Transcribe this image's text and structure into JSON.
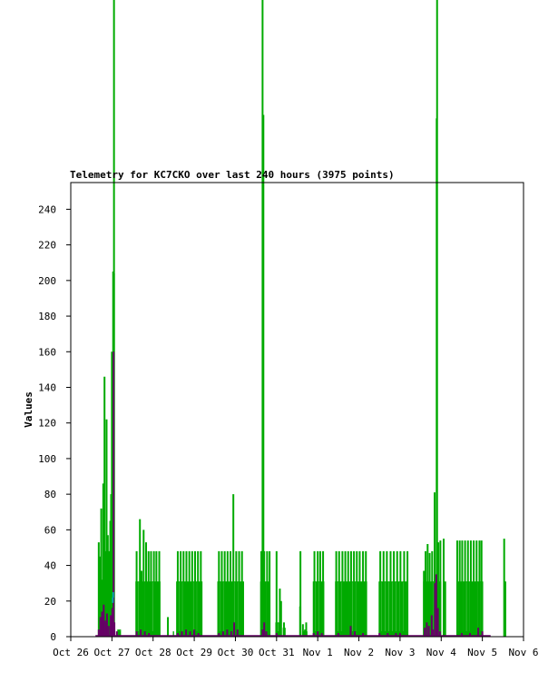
{
  "chart_data": {
    "type": "bar",
    "title": "Telemetry for KC7CKO over last 240 hours (3975 points)",
    "xlabel": "",
    "ylabel": "Values",
    "xlim": [
      0,
      11
    ],
    "ylim": [
      0,
      255
    ],
    "yticks": [
      0,
      20,
      40,
      60,
      80,
      100,
      120,
      140,
      160,
      180,
      200,
      220,
      240
    ],
    "xticks": [
      {
        "x": 0,
        "label": "Oct 26"
      },
      {
        "x": 1,
        "label": "Oct 27"
      },
      {
        "x": 2,
        "label": "Oct 28"
      },
      {
        "x": 3,
        "label": "Oct 29"
      },
      {
        "x": 4,
        "label": "Oct 30"
      },
      {
        "x": 5,
        "label": "Oct 31"
      },
      {
        "x": 6,
        "label": "Nov 1"
      },
      {
        "x": 7,
        "label": "Nov 2"
      },
      {
        "x": 8,
        "label": "Nov 3"
      },
      {
        "x": 9,
        "label": "Nov 4"
      },
      {
        "x": 10,
        "label": "Nov 5"
      },
      {
        "x": 11,
        "label": "Nov 6"
      }
    ],
    "colors": {
      "primary": "#00aa00",
      "secondary": "#660066",
      "tertiary": "#00aaaa",
      "frame": "#000000"
    },
    "series": [
      {
        "color": "#00aa00",
        "segments": [
          {
            "x0": 0.67,
            "x1": 1.05,
            "base": 32,
            "spikes": [
              [
                0.68,
                53
              ],
              [
                0.71,
                45
              ],
              [
                0.74,
                72
              ],
              [
                0.77,
                30
              ],
              [
                0.79,
                86
              ],
              [
                0.82,
                146
              ],
              [
                0.84,
                48
              ],
              [
                0.87,
                122
              ],
              [
                0.9,
                57
              ],
              [
                0.93,
                48
              ],
              [
                0.96,
                65
              ],
              [
                0.98,
                80
              ],
              [
                1.0,
                160
              ],
              [
                1.03,
                205
              ],
              [
                1.05,
                204
              ]
            ]
          },
          {
            "x0": 1.13,
            "x1": 1.22,
            "base": 4,
            "spikes": []
          },
          {
            "x0": 1.57,
            "x1": 2.18,
            "base": 31,
            "spikes": [
              [
                1.6,
                48
              ],
              [
                1.68,
                66
              ],
              [
                1.72,
                37
              ],
              [
                1.77,
                60
              ],
              [
                1.83,
                53
              ],
              [
                1.89,
                48
              ],
              [
                1.95,
                48
              ],
              [
                2.02,
                48
              ],
              [
                2.08,
                48
              ],
              [
                2.15,
                48
              ]
            ]
          },
          {
            "x0": 2.35,
            "x1": 2.38,
            "base": 5,
            "spikes": [
              [
                2.36,
                11
              ]
            ]
          },
          {
            "x0": 2.48,
            "x1": 2.51,
            "base": 3,
            "spikes": []
          },
          {
            "x0": 2.56,
            "x1": 3.2,
            "base": 31,
            "spikes": [
              [
                2.6,
                48
              ],
              [
                2.67,
                48
              ],
              [
                2.74,
                48
              ],
              [
                2.81,
                48
              ],
              [
                2.88,
                48
              ],
              [
                2.95,
                48
              ],
              [
                3.02,
                48
              ],
              [
                3.09,
                48
              ],
              [
                3.16,
                48
              ]
            ]
          },
          {
            "x0": 3.56,
            "x1": 4.21,
            "base": 31,
            "spikes": [
              [
                3.6,
                48
              ],
              [
                3.67,
                48
              ],
              [
                3.74,
                48
              ],
              [
                3.81,
                48
              ],
              [
                3.88,
                48
              ],
              [
                3.95,
                80
              ],
              [
                4.02,
                48
              ],
              [
                4.09,
                48
              ],
              [
                4.16,
                48
              ]
            ]
          },
          {
            "x0": 4.6,
            "x1": 4.84,
            "base": 31,
            "spikes": [
              [
                4.63,
                48
              ],
              [
                4.7,
                48
              ],
              [
                4.77,
                48
              ],
              [
                4.83,
                48
              ]
            ]
          },
          {
            "x0": 4.97,
            "x1": 5.12,
            "base": 8,
            "spikes": [
              [
                5.0,
                48
              ],
              [
                5.08,
                27
              ],
              [
                5.11,
                20
              ]
            ]
          },
          {
            "x0": 5.15,
            "x1": 5.22,
            "base": 5,
            "spikes": [
              [
                5.18,
                8
              ]
            ]
          },
          {
            "x0": 5.55,
            "x1": 5.6,
            "base": 17,
            "spikes": [
              [
                5.58,
                48
              ]
            ]
          },
          {
            "x0": 5.62,
            "x1": 5.75,
            "base": 3,
            "spikes": [
              [
                5.64,
                7
              ],
              [
                5.69,
                4
              ],
              [
                5.72,
                8
              ]
            ]
          },
          {
            "x0": 5.88,
            "x1": 6.16,
            "base": 31,
            "spikes": [
              [
                5.92,
                48
              ],
              [
                6.0,
                48
              ],
              [
                6.06,
                48
              ],
              [
                6.13,
                48
              ]
            ]
          },
          {
            "x0": 6.42,
            "x1": 7.2,
            "base": 31,
            "spikes": [
              [
                6.45,
                48
              ],
              [
                6.52,
                48
              ],
              [
                6.6,
                48
              ],
              [
                6.67,
                48
              ],
              [
                6.74,
                48
              ],
              [
                6.81,
                48
              ],
              [
                6.88,
                48
              ],
              [
                6.95,
                48
              ],
              [
                7.02,
                48
              ],
              [
                7.1,
                48
              ],
              [
                7.17,
                48
              ]
            ]
          },
          {
            "x0": 7.48,
            "x1": 8.2,
            "base": 31,
            "spikes": [
              [
                7.52,
                48
              ],
              [
                7.6,
                48
              ],
              [
                7.68,
                48
              ],
              [
                7.77,
                48
              ],
              [
                7.85,
                48
              ],
              [
                7.93,
                48
              ],
              [
                8.01,
                48
              ],
              [
                8.1,
                48
              ],
              [
                8.18,
                48
              ]
            ]
          },
          {
            "x0": 8.56,
            "x1": 9.0,
            "base": 31,
            "spikes": [
              [
                8.58,
                37
              ],
              [
                8.62,
                48
              ],
              [
                8.67,
                52
              ],
              [
                8.72,
                47
              ],
              [
                8.78,
                48
              ],
              [
                8.84,
                81
              ],
              [
                8.93,
                53
              ],
              [
                8.98,
                54
              ]
            ]
          },
          {
            "x0": 9.04,
            "x1": 9.12,
            "base": 31,
            "spikes": [
              [
                9.06,
                55
              ]
            ]
          },
          {
            "x0": 9.37,
            "x1": 10.02,
            "base": 31,
            "spikes": [
              [
                9.39,
                54
              ],
              [
                9.45,
                54
              ],
              [
                9.51,
                54
              ],
              [
                9.58,
                54
              ],
              [
                9.65,
                54
              ],
              [
                9.72,
                54
              ],
              [
                9.79,
                54
              ],
              [
                9.86,
                54
              ],
              [
                9.93,
                54
              ],
              [
                9.98,
                54
              ]
            ]
          },
          {
            "x0": 10.52,
            "x1": 10.58,
            "base": 31,
            "spikes": [
              [
                10.53,
                55
              ]
            ]
          }
        ],
        "tall": [
          {
            "x": 1.05,
            "y": 420
          },
          {
            "x": 4.66,
            "y": 410
          },
          {
            "x": 4.68,
            "y": 293
          },
          {
            "x": 8.9,
            "y": 410
          },
          {
            "x": 8.89,
            "y": 291
          }
        ]
      },
      {
        "color": "#660066",
        "points": [
          [
            0.68,
            4
          ],
          [
            0.72,
            11
          ],
          [
            0.76,
            14
          ],
          [
            0.8,
            18
          ],
          [
            0.84,
            9
          ],
          [
            0.88,
            13
          ],
          [
            0.92,
            6
          ],
          [
            0.97,
            12
          ],
          [
            1.01,
            16
          ],
          [
            1.04,
            160
          ],
          [
            1.06,
            8
          ],
          [
            1.12,
            3
          ],
          [
            1.6,
            3
          ],
          [
            1.7,
            4
          ],
          [
            1.8,
            3
          ],
          [
            1.9,
            2
          ],
          [
            2.6,
            2
          ],
          [
            2.7,
            3
          ],
          [
            2.8,
            4
          ],
          [
            2.9,
            3
          ],
          [
            3.0,
            4
          ],
          [
            3.1,
            2
          ],
          [
            3.6,
            2
          ],
          [
            3.7,
            3
          ],
          [
            3.8,
            4
          ],
          [
            3.9,
            3
          ],
          [
            3.97,
            8
          ],
          [
            4.05,
            4
          ],
          [
            4.66,
            4
          ],
          [
            4.7,
            8
          ],
          [
            4.75,
            3
          ],
          [
            5.0,
            2
          ],
          [
            5.9,
            2
          ],
          [
            6.0,
            3
          ],
          [
            6.1,
            2
          ],
          [
            6.5,
            2
          ],
          [
            6.8,
            6
          ],
          [
            6.9,
            3
          ],
          [
            7.1,
            2
          ],
          [
            7.5,
            2
          ],
          [
            7.7,
            2
          ],
          [
            7.9,
            2
          ],
          [
            8.0,
            2
          ],
          [
            8.6,
            5
          ],
          [
            8.65,
            8
          ],
          [
            8.7,
            6
          ],
          [
            8.77,
            12
          ],
          [
            8.8,
            4
          ],
          [
            8.85,
            30
          ],
          [
            8.88,
            35
          ],
          [
            8.92,
            16
          ],
          [
            8.97,
            3
          ],
          [
            9.5,
            2
          ],
          [
            9.7,
            2
          ],
          [
            9.9,
            5
          ],
          [
            10.0,
            3
          ]
        ]
      },
      {
        "color": "#00aaaa",
        "points": [
          [
            1.02,
            22
          ],
          [
            1.03,
            25
          ]
        ]
      }
    ]
  }
}
